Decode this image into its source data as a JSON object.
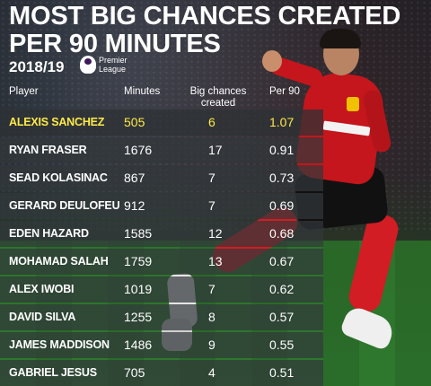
{
  "title": {
    "line1": "MOST BIG CHANCES CREATED",
    "line2": "PER 90 MINUTES"
  },
  "season": "2018/19",
  "league_logo": {
    "line1": "Premier",
    "line2": "League"
  },
  "table": {
    "headers": {
      "player": "Player",
      "minutes": "Minutes",
      "big_chances_line1": "Big chances",
      "big_chances_line2": "created",
      "per90": "Per 90"
    },
    "rows": [
      {
        "player": "ALEXIS SANCHEZ",
        "minutes": "505",
        "big_chances": "6",
        "per90": "1.07",
        "highlight": true
      },
      {
        "player": "RYAN FRASER",
        "minutes": "1676",
        "big_chances": "17",
        "per90": "0.91"
      },
      {
        "player": "SEAD KOLASINAC",
        "minutes": "867",
        "big_chances": "7",
        "per90": "0.73"
      },
      {
        "player": "GERARD DEULOFEU",
        "minutes": "912",
        "big_chances": "7",
        "per90": "0.69"
      },
      {
        "player": "EDEN HAZARD",
        "minutes": "1585",
        "big_chances": "12",
        "per90": "0.68"
      },
      {
        "player": "MOHAMAD SALAH",
        "minutes": "1759",
        "big_chances": "13",
        "per90": "0.67"
      },
      {
        "player": "ALEX IWOBI",
        "minutes": "1019",
        "big_chances": "7",
        "per90": "0.62"
      },
      {
        "player": "DAVID SILVA",
        "minutes": "1255",
        "big_chances": "8",
        "per90": "0.57"
      },
      {
        "player": "JAMES MADDISON",
        "minutes": "1486",
        "big_chances": "9",
        "per90": "0.55"
      },
      {
        "player": "GABRIEL JESUS",
        "minutes": "705",
        "big_chances": "4",
        "per90": "0.51"
      }
    ]
  },
  "colors": {
    "highlight": "#ffe94a",
    "row_bg": "#32383a",
    "kit_red": "#c4161c"
  }
}
